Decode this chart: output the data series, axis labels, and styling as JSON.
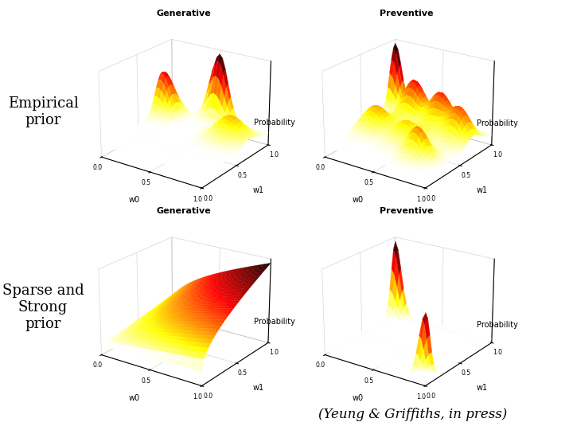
{
  "title_fontsize": 8,
  "label_fontsize": 7,
  "text_fontsize": 13,
  "row_labels": [
    "Empirical\nprior",
    "Sparse and\nStrong\nprior"
  ],
  "col_labels": [
    "Generative",
    "Preventive"
  ],
  "axis_label_w0": "w0",
  "axis_label_w1": "w1",
  "axis_label_prob": "Probability",
  "tick_vals": [
    0.0,
    0.5,
    1.0
  ],
  "background_color": "#ffffff",
  "footer_text": "(Yeung & Griffiths, in press)",
  "footer_fontsize": 12
}
